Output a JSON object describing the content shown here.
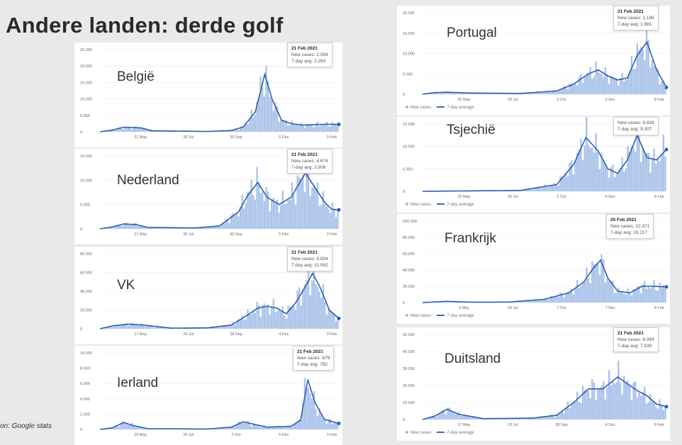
{
  "title": "Andere landen: derde golf",
  "source": "on: Google stats",
  "legend": {
    "new_cases": "New cases",
    "avg": "7-day average"
  },
  "colors": {
    "bar": "#a9c2ea",
    "line": "#2f5fae",
    "grid": "#ececec"
  },
  "chart_data": [
    {
      "type": "bar",
      "country": "België",
      "tooltip": {
        "date": "21 Feb 2021",
        "new_cases": "New cases: 2.094",
        "avg": "7-day avg: 2.263"
      },
      "yticks": [
        "25.000",
        "20.000",
        "15.000",
        "10.000",
        "5.000",
        "0"
      ],
      "ylim": [
        0,
        25000
      ],
      "xticks": [
        "21 May",
        "26 Jul",
        "30 Sep",
        "5 Dec",
        "9 Feb"
      ],
      "series_avg": [
        [
          0,
          0
        ],
        [
          0.05,
          500
        ],
        [
          0.1,
          1400
        ],
        [
          0.17,
          1200
        ],
        [
          0.22,
          300
        ],
        [
          0.35,
          200
        ],
        [
          0.45,
          100
        ],
        [
          0.55,
          400
        ],
        [
          0.6,
          1500
        ],
        [
          0.65,
          6000
        ],
        [
          0.69,
          17500
        ],
        [
          0.72,
          10000
        ],
        [
          0.76,
          3500
        ],
        [
          0.8,
          2500
        ],
        [
          0.85,
          2000
        ],
        [
          0.9,
          2200
        ],
        [
          0.95,
          2300
        ],
        [
          1,
          2263
        ]
      ]
    },
    {
      "type": "bar",
      "country": "Nederland",
      "tooltip": {
        "date": "21 Feb 2021",
        "new_cases": "New cases: 4.674",
        "avg": "7-day avg: 3.908"
      },
      "yticks": [
        "15.000",
        "10.000",
        "5.000",
        "0"
      ],
      "ylim": [
        0,
        15000
      ],
      "xticks": [
        "21 May",
        "26 Jul",
        "30 Sep",
        "5 Dec",
        "9 Feb"
      ],
      "series_avg": [
        [
          0,
          0
        ],
        [
          0.05,
          400
        ],
        [
          0.1,
          1000
        ],
        [
          0.15,
          900
        ],
        [
          0.2,
          300
        ],
        [
          0.4,
          200
        ],
        [
          0.5,
          600
        ],
        [
          0.58,
          3500
        ],
        [
          0.62,
          7000
        ],
        [
          0.66,
          9500
        ],
        [
          0.7,
          6500
        ],
        [
          0.75,
          5000
        ],
        [
          0.8,
          6500
        ],
        [
          0.83,
          9000
        ],
        [
          0.86,
          11500
        ],
        [
          0.9,
          8500
        ],
        [
          0.94,
          5500
        ],
        [
          0.97,
          4000
        ],
        [
          1,
          3908
        ]
      ]
    },
    {
      "type": "bar",
      "country": "VK",
      "tooltip": {
        "date": "21 Feb 2021",
        "new_cases": "New cases: 9.834",
        "avg": "7-day avg: 11.062"
      },
      "yticks": [
        "80.000",
        "60.000",
        "40.000",
        "20.000",
        "0"
      ],
      "ylim": [
        0,
        80000
      ],
      "xticks": [
        "17 May",
        "23 Jul",
        "28 Sep",
        "4 Dec",
        "9 Feb"
      ],
      "series_avg": [
        [
          0,
          0
        ],
        [
          0.05,
          3000
        ],
        [
          0.12,
          5000
        ],
        [
          0.18,
          4000
        ],
        [
          0.3,
          700
        ],
        [
          0.45,
          1000
        ],
        [
          0.55,
          4000
        ],
        [
          0.62,
          15000
        ],
        [
          0.66,
          22000
        ],
        [
          0.7,
          24000
        ],
        [
          0.74,
          22000
        ],
        [
          0.78,
          16000
        ],
        [
          0.82,
          28000
        ],
        [
          0.86,
          45000
        ],
        [
          0.89,
          59000
        ],
        [
          0.92,
          45000
        ],
        [
          0.96,
          20000
        ],
        [
          1,
          11062
        ]
      ]
    },
    {
      "type": "bar",
      "country": "Ierland",
      "tooltip": {
        "date": "21 Feb 2021",
        "new_cases": "New cases: 679",
        "avg": "7-day avg: 782"
      },
      "yticks": [
        "10.000",
        "8.000",
        "6.000",
        "4.000",
        "2.000",
        "0"
      ],
      "ylim": [
        0,
        10000
      ],
      "xticks": [
        "25 May",
        "29 Jul",
        "2 Oct",
        "6 Dec",
        "9 Feb"
      ],
      "series_avg": [
        [
          0,
          0
        ],
        [
          0.05,
          200
        ],
        [
          0.1,
          900
        ],
        [
          0.14,
          500
        ],
        [
          0.2,
          100
        ],
        [
          0.45,
          50
        ],
        [
          0.55,
          300
        ],
        [
          0.6,
          1000
        ],
        [
          0.64,
          700
        ],
        [
          0.7,
          300
        ],
        [
          0.8,
          400
        ],
        [
          0.84,
          1200
        ],
        [
          0.87,
          6500
        ],
        [
          0.9,
          3500
        ],
        [
          0.94,
          1300
        ],
        [
          1,
          782
        ]
      ]
    },
    {
      "type": "bar",
      "country": "Portugal",
      "tooltip": {
        "date": "21 Feb 2021",
        "new_cases": "New cases: 1.186",
        "avg": "7-day avg: 1.681"
      },
      "yticks": [
        "20.000",
        "15.000",
        "10.000",
        "5.000",
        "0"
      ],
      "ylim": [
        0,
        20000
      ],
      "xticks": [
        "25 May",
        "29 Jul",
        "2 Oct",
        "6 Dec",
        "9 Feb"
      ],
      "series_avg": [
        [
          0,
          0
        ],
        [
          0.05,
          400
        ],
        [
          0.1,
          500
        ],
        [
          0.2,
          300
        ],
        [
          0.4,
          200
        ],
        [
          0.55,
          800
        ],
        [
          0.62,
          2500
        ],
        [
          0.68,
          5000
        ],
        [
          0.72,
          6000
        ],
        [
          0.76,
          4500
        ],
        [
          0.8,
          3500
        ],
        [
          0.84,
          4000
        ],
        [
          0.88,
          9500
        ],
        [
          0.92,
          12800
        ],
        [
          0.96,
          6000
        ],
        [
          1,
          1681
        ]
      ]
    },
    {
      "type": "bar",
      "country": "Tsjechië",
      "tooltip": {
        "date": "",
        "new_cases": "New cases: 6.838",
        "avg": "7-day avg: 9.307"
      },
      "yticks": [
        "15.000",
        "10.000",
        "5.000",
        "0"
      ],
      "ylim": [
        0,
        15000
      ],
      "xticks": [
        "25 May",
        "29 Jul",
        "2 Oct",
        "6 Dec",
        "9 Feb"
      ],
      "series_avg": [
        [
          0,
          0
        ],
        [
          0.2,
          100
        ],
        [
          0.4,
          200
        ],
        [
          0.55,
          1500
        ],
        [
          0.62,
          6000
        ],
        [
          0.67,
          12000
        ],
        [
          0.72,
          9000
        ],
        [
          0.76,
          5000
        ],
        [
          0.8,
          4000
        ],
        [
          0.84,
          7000
        ],
        [
          0.88,
          12500
        ],
        [
          0.92,
          7500
        ],
        [
          0.96,
          7000
        ],
        [
          1,
          9307
        ]
      ]
    },
    {
      "type": "bar",
      "country": "Frankrijk",
      "tooltip": {
        "date": "20 Feb 2021",
        "new_cases": "New cases: 22.371",
        "avg": "7-day avg: 19.217"
      },
      "yticks": [
        "100.000",
        "80.000",
        "60.000",
        "40.000",
        "20.000",
        "0"
      ],
      "ylim": [
        0,
        100000
      ],
      "xticks": [
        "9 May",
        "29 Jul",
        "7 Oct",
        "7 Dec",
        "9 Feb"
      ],
      "series_avg": [
        [
          0,
          0
        ],
        [
          0.1,
          1500
        ],
        [
          0.2,
          500
        ],
        [
          0.35,
          600
        ],
        [
          0.5,
          4000
        ],
        [
          0.6,
          12000
        ],
        [
          0.66,
          25000
        ],
        [
          0.7,
          42000
        ],
        [
          0.73,
          52000
        ],
        [
          0.76,
          30000
        ],
        [
          0.8,
          14000
        ],
        [
          0.85,
          12000
        ],
        [
          0.9,
          20000
        ],
        [
          0.95,
          20000
        ],
        [
          1,
          19217
        ]
      ]
    },
    {
      "type": "bar",
      "country": "Duitsland",
      "tooltip": {
        "date": "21 Feb 2021",
        "new_cases": "New cases: 6.094",
        "avg": "7-day avg: 7.539"
      },
      "yticks": [
        "50.000",
        "40.000",
        "30.000",
        "20.000",
        "10.000",
        "0"
      ],
      "ylim": [
        0,
        50000
      ],
      "xticks": [
        "17 May",
        "23 Jul",
        "28 Sep",
        "4 Dec",
        "9 Feb"
      ],
      "series_avg": [
        [
          0,
          0
        ],
        [
          0.05,
          2000
        ],
        [
          0.1,
          6000
        ],
        [
          0.15,
          3000
        ],
        [
          0.25,
          500
        ],
        [
          0.45,
          800
        ],
        [
          0.55,
          2500
        ],
        [
          0.62,
          10000
        ],
        [
          0.68,
          18000
        ],
        [
          0.74,
          18000
        ],
        [
          0.8,
          25000
        ],
        [
          0.84,
          21000
        ],
        [
          0.88,
          17000
        ],
        [
          0.92,
          14000
        ],
        [
          0.96,
          9000
        ],
        [
          1,
          7539
        ]
      ]
    }
  ]
}
